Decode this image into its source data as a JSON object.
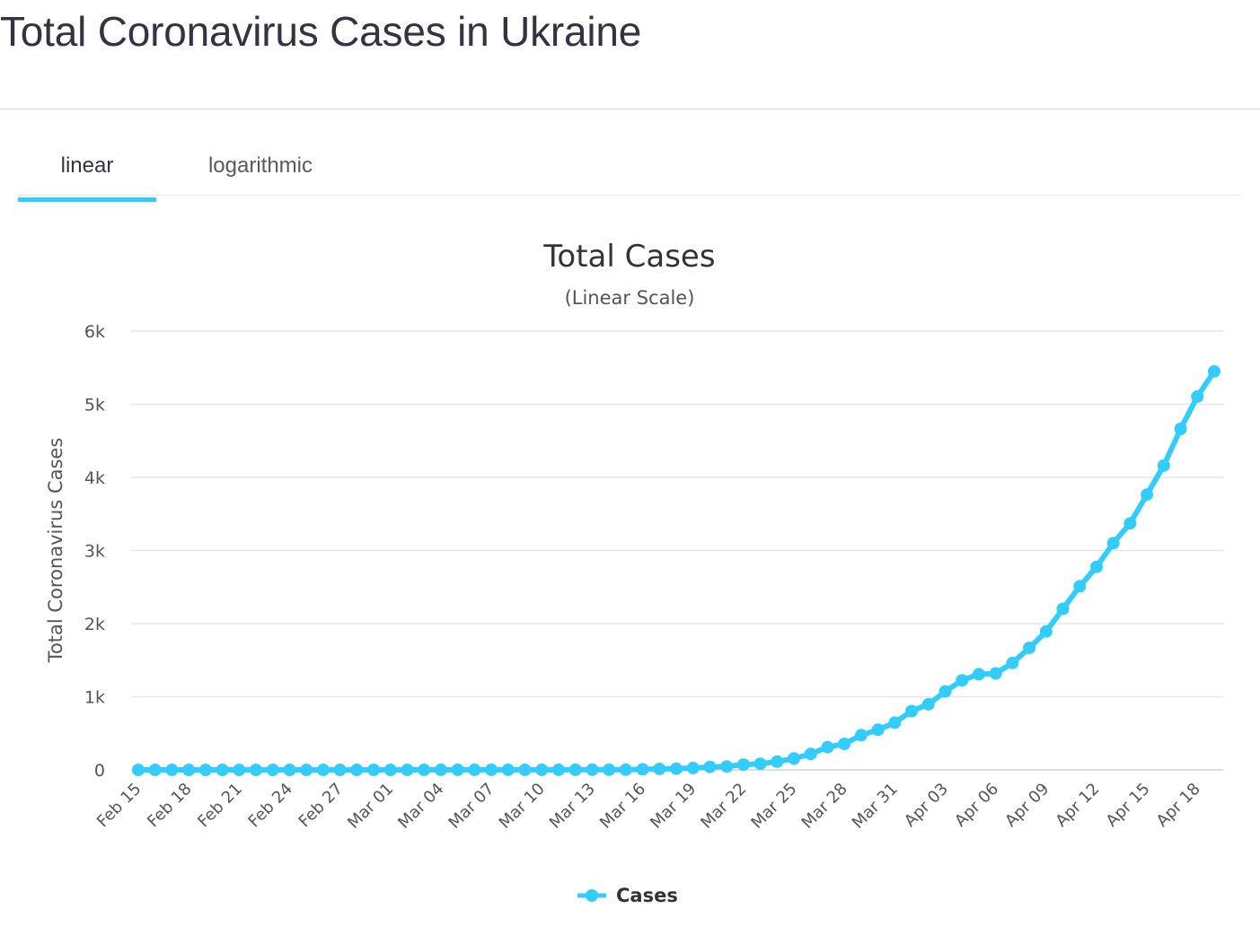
{
  "page": {
    "heading": "Total Coronavirus Cases in Ukraine"
  },
  "tabs": [
    {
      "label": "linear",
      "active": true
    },
    {
      "label": "logarithmic",
      "active": false
    }
  ],
  "colors": {
    "series": "#33ccff",
    "grid": "#e6e6e6",
    "text": "#323441"
  },
  "chart_data": {
    "type": "line",
    "title": "Total Cases",
    "subtitle": "(Linear Scale)",
    "ylabel": "Total Coronavirus Cases",
    "xlabel": "",
    "ylim": [
      0,
      6000
    ],
    "yticks": [
      0,
      1000,
      2000,
      3000,
      4000,
      5000,
      6000
    ],
    "ytick_labels": [
      "0",
      "1k",
      "2k",
      "3k",
      "4k",
      "5k",
      "6k"
    ],
    "xtick_labels": [
      "Feb 15",
      "Feb 18",
      "Feb 21",
      "Feb 24",
      "Feb 27",
      "Mar 01",
      "Mar 04",
      "Mar 07",
      "Mar 10",
      "Mar 13",
      "Mar 16",
      "Mar 19",
      "Mar 22",
      "Mar 25",
      "Mar 28",
      "Mar 31",
      "Apr 03",
      "Apr 06",
      "Apr 09",
      "Apr 12",
      "Apr 15",
      "Apr 18"
    ],
    "grid": true,
    "legend_position": "bottom-center",
    "series": [
      {
        "name": "Cases",
        "x": [
          "Feb 15",
          "Feb 16",
          "Feb 17",
          "Feb 18",
          "Feb 19",
          "Feb 20",
          "Feb 21",
          "Feb 22",
          "Feb 23",
          "Feb 24",
          "Feb 25",
          "Feb 26",
          "Feb 27",
          "Feb 28",
          "Feb 29",
          "Mar 01",
          "Mar 02",
          "Mar 03",
          "Mar 04",
          "Mar 05",
          "Mar 06",
          "Mar 07",
          "Mar 08",
          "Mar 09",
          "Mar 10",
          "Mar 11",
          "Mar 12",
          "Mar 13",
          "Mar 14",
          "Mar 15",
          "Mar 16",
          "Mar 17",
          "Mar 18",
          "Mar 19",
          "Mar 20",
          "Mar 21",
          "Mar 22",
          "Mar 23",
          "Mar 24",
          "Mar 25",
          "Mar 26",
          "Mar 27",
          "Mar 28",
          "Mar 29",
          "Mar 30",
          "Mar 31",
          "Apr 01",
          "Apr 02",
          "Apr 03",
          "Apr 04",
          "Apr 05",
          "Apr 06",
          "Apr 07",
          "Apr 08",
          "Apr 09",
          "Apr 10",
          "Apr 11",
          "Apr 12",
          "Apr 13",
          "Apr 14",
          "Apr 15",
          "Apr 16",
          "Apr 17",
          "Apr 18",
          "Apr 19"
        ],
        "values": [
          0,
          0,
          0,
          0,
          0,
          0,
          0,
          0,
          0,
          0,
          0,
          0,
          0,
          0,
          0,
          0,
          0,
          1,
          1,
          1,
          1,
          1,
          1,
          1,
          1,
          1,
          1,
          3,
          3,
          3,
          7,
          14,
          16,
          26,
          41,
          47,
          73,
          84,
          113,
          156,
          218,
          311,
          356,
          475,
          549,
          645,
          804,
          897,
          1072,
          1225,
          1308,
          1319,
          1462,
          1668,
          1892,
          2203,
          2511,
          2777,
          3102,
          3372,
          3764,
          4161,
          4662,
          5106,
          5449
        ]
      }
    ]
  }
}
